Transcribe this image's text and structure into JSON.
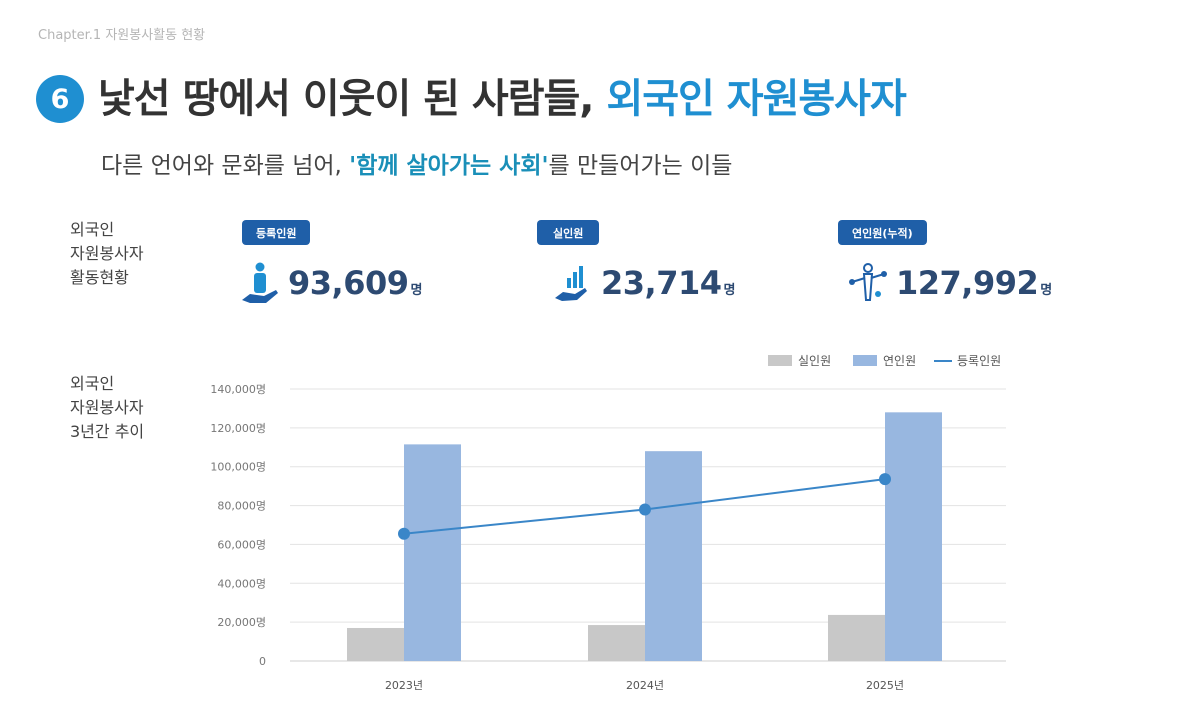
{
  "header": {
    "chapter": "Chapter.1 자원봉사활동 현황",
    "badge": "6",
    "title_main": "낯선 땅에서 이웃이 된 사람들, ",
    "title_accent": "외국인 자원봉사자",
    "subtitle_pre": "다른 언어와 문화를 넘어, ",
    "subtitle_accent": "'함께 살아가는 사회'",
    "subtitle_post": "를 만들어가는 이들"
  },
  "summary": {
    "label_lines": [
      "외국인",
      "자원봉사자",
      "활동현황"
    ],
    "stats": [
      {
        "label": "등록인원",
        "value": "93,609",
        "unit": "명",
        "icon": "person-hand-icon"
      },
      {
        "label": "실인원",
        "value": "23,714",
        "unit": "명",
        "icon": "chart-hand-icon"
      },
      {
        "label": "연인원(누적)",
        "value": "127,992",
        "unit": "명",
        "icon": "network-person-icon"
      }
    ]
  },
  "trend": {
    "label_lines": [
      "외국인",
      "자원봉사자",
      "3년간 추이"
    ]
  },
  "colors": {
    "accent_blue": "#1f8fd1",
    "badge_navy": "#1f5fa8",
    "bar_gray": "#c8c8c8",
    "bar_blue": "#98b7e0",
    "line_blue": "#3a86c8"
  },
  "chart_data": {
    "type": "bar",
    "categories": [
      "2023년",
      "2024년",
      "2025년"
    ],
    "series": [
      {
        "name": "실인원",
        "type": "bar",
        "values": [
          17000,
          18500,
          23714
        ]
      },
      {
        "name": "연인원",
        "type": "bar",
        "values": [
          111500,
          108000,
          127992
        ]
      },
      {
        "name": "등록인원",
        "type": "line",
        "values": [
          65500,
          78000,
          93609
        ]
      }
    ],
    "ylim": [
      0,
      140000
    ],
    "yticks": [
      0,
      20000,
      40000,
      60000,
      80000,
      100000,
      120000,
      140000
    ],
    "ytick_labels": [
      "0",
      "20,000명",
      "40,000명",
      "60,000명",
      "80,000명",
      "100,000명",
      "120,000명",
      "140,000명"
    ],
    "grid": true,
    "legend_position": "top-right"
  }
}
